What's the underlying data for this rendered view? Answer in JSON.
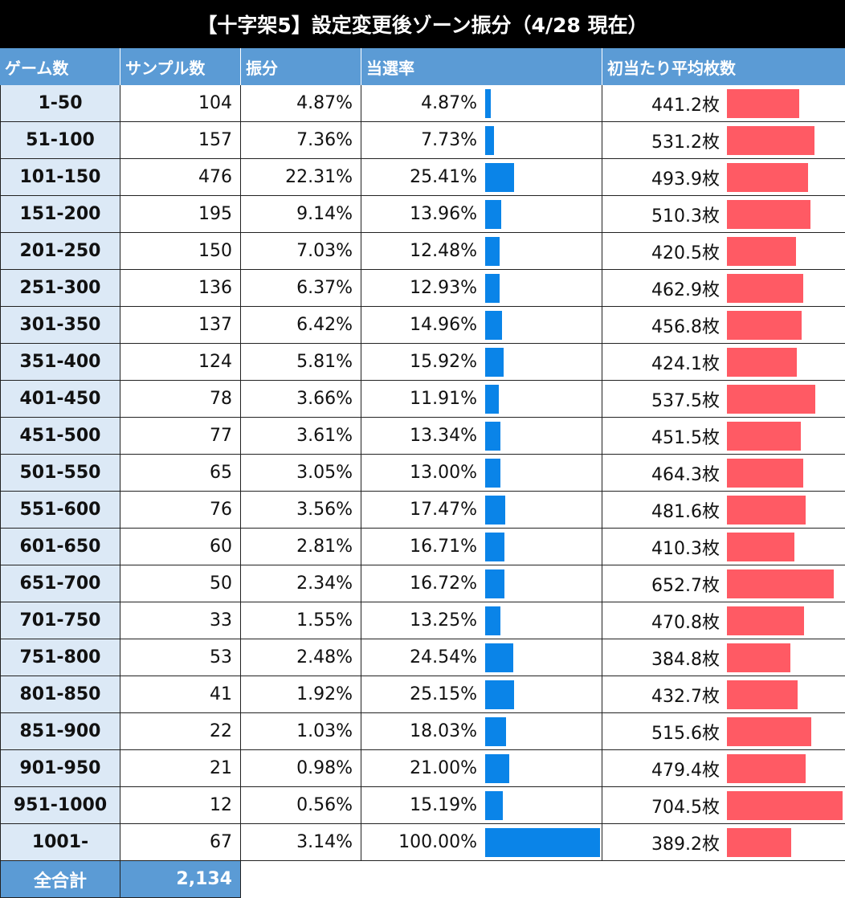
{
  "title": "【十字架5】設定変更後ゾーン振分（4/28 現在）",
  "headers": {
    "game": "ゲーム数",
    "sample": "サンプル数",
    "dist": "振分",
    "rate": "当選率",
    "avg": "初当たり平均枚数"
  },
  "colors": {
    "header_bg": "#5b9bd5",
    "rate_bar": "#0a84e8",
    "avg_bar": "#ff5a64",
    "game_col_bg": "#dce9f6"
  },
  "rows": [
    {
      "game": "1-50",
      "sample": "104",
      "dist": "4.87%",
      "rate": "4.87%",
      "avg": "441.2枚"
    },
    {
      "game": "51-100",
      "sample": "157",
      "dist": "7.36%",
      "rate": "7.73%",
      "avg": "531.2枚"
    },
    {
      "game": "101-150",
      "sample": "476",
      "dist": "22.31%",
      "rate": "25.41%",
      "avg": "493.9枚"
    },
    {
      "game": "151-200",
      "sample": "195",
      "dist": "9.14%",
      "rate": "13.96%",
      "avg": "510.3枚"
    },
    {
      "game": "201-250",
      "sample": "150",
      "dist": "7.03%",
      "rate": "12.48%",
      "avg": "420.5枚"
    },
    {
      "game": "251-300",
      "sample": "136",
      "dist": "6.37%",
      "rate": "12.93%",
      "avg": "462.9枚"
    },
    {
      "game": "301-350",
      "sample": "137",
      "dist": "6.42%",
      "rate": "14.96%",
      "avg": "456.8枚"
    },
    {
      "game": "351-400",
      "sample": "124",
      "dist": "5.81%",
      "rate": "15.92%",
      "avg": "424.1枚"
    },
    {
      "game": "401-450",
      "sample": "78",
      "dist": "3.66%",
      "rate": "11.91%",
      "avg": "537.5枚"
    },
    {
      "game": "451-500",
      "sample": "77",
      "dist": "3.61%",
      "rate": "13.34%",
      "avg": "451.5枚"
    },
    {
      "game": "501-550",
      "sample": "65",
      "dist": "3.05%",
      "rate": "13.00%",
      "avg": "464.3枚"
    },
    {
      "game": "551-600",
      "sample": "76",
      "dist": "3.56%",
      "rate": "17.47%",
      "avg": "481.6枚"
    },
    {
      "game": "601-650",
      "sample": "60",
      "dist": "2.81%",
      "rate": "16.71%",
      "avg": "410.3枚"
    },
    {
      "game": "651-700",
      "sample": "50",
      "dist": "2.34%",
      "rate": "16.72%",
      "avg": "652.7枚"
    },
    {
      "game": "701-750",
      "sample": "33",
      "dist": "1.55%",
      "rate": "13.25%",
      "avg": "470.8枚"
    },
    {
      "game": "751-800",
      "sample": "53",
      "dist": "2.48%",
      "rate": "24.54%",
      "avg": "384.8枚"
    },
    {
      "game": "801-850",
      "sample": "41",
      "dist": "1.92%",
      "rate": "25.15%",
      "avg": "432.7枚"
    },
    {
      "game": "851-900",
      "sample": "22",
      "dist": "1.03%",
      "rate": "18.03%",
      "avg": "515.6枚"
    },
    {
      "game": "901-950",
      "sample": "21",
      "dist": "0.98%",
      "rate": "21.00%",
      "avg": "479.4枚"
    },
    {
      "game": "951-1000",
      "sample": "12",
      "dist": "0.56%",
      "rate": "15.19%",
      "avg": "704.5枚"
    },
    {
      "game": "1001-",
      "sample": "67",
      "dist": "3.14%",
      "rate": "100.00%",
      "avg": "389.2枚"
    }
  ],
  "footer": {
    "label": "全合計",
    "total": "2,134"
  },
  "chart_data": {
    "type": "table",
    "title": "【十字架5】設定変更後ゾーン振分（4/28 現在）",
    "categories": [
      "1-50",
      "51-100",
      "101-150",
      "151-200",
      "201-250",
      "251-300",
      "301-350",
      "351-400",
      "401-450",
      "451-500",
      "501-550",
      "551-600",
      "601-650",
      "651-700",
      "701-750",
      "751-800",
      "801-850",
      "851-900",
      "901-950",
      "951-1000",
      "1001-"
    ],
    "series": [
      {
        "name": "サンプル数",
        "values": [
          104,
          157,
          476,
          195,
          150,
          136,
          137,
          124,
          78,
          77,
          65,
          76,
          60,
          50,
          33,
          53,
          41,
          22,
          21,
          12,
          67
        ]
      },
      {
        "name": "振分",
        "values": [
          4.87,
          7.36,
          22.31,
          9.14,
          7.03,
          6.37,
          6.42,
          5.81,
          3.66,
          3.61,
          3.05,
          3.56,
          2.81,
          2.34,
          1.55,
          2.48,
          1.92,
          1.03,
          0.98,
          0.56,
          3.14
        ]
      },
      {
        "name": "当選率",
        "values": [
          4.87,
          7.73,
          25.41,
          13.96,
          12.48,
          12.93,
          14.96,
          15.92,
          11.91,
          13.34,
          13.0,
          17.47,
          16.71,
          16.72,
          13.25,
          24.54,
          25.15,
          18.03,
          21.0,
          15.19,
          100.0
        ]
      },
      {
        "name": "初当たり平均枚数",
        "values": [
          441.2,
          531.2,
          493.9,
          510.3,
          420.5,
          462.9,
          456.8,
          424.1,
          537.5,
          451.5,
          464.3,
          481.6,
          410.3,
          652.7,
          470.8,
          384.8,
          432.7,
          515.6,
          479.4,
          704.5,
          389.2
        ]
      }
    ],
    "total_sample": 2134
  }
}
